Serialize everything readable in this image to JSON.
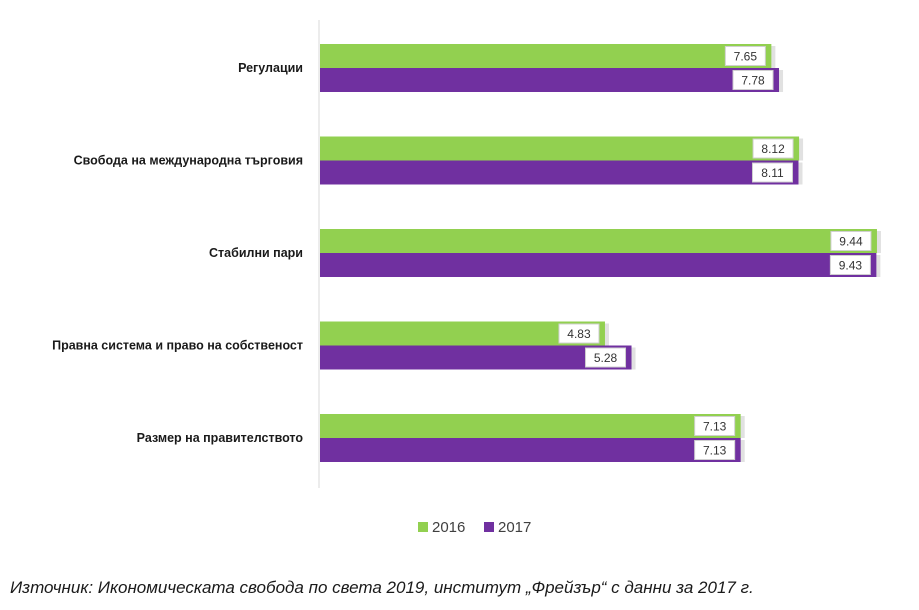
{
  "chart_data": {
    "type": "bar",
    "orientation": "horizontal",
    "categories": [
      "Регулации",
      "Свобода на международна търговия",
      "Стабилни пари",
      "Правна система и право на собственост",
      "Размер на правителството"
    ],
    "series": [
      {
        "name": "2016",
        "color": "#92d050",
        "values": [
          7.65,
          8.12,
          9.44,
          4.83,
          7.13
        ]
      },
      {
        "name": "2017",
        "color": "#7030a0",
        "values": [
          7.78,
          8.11,
          9.43,
          5.28,
          7.13
        ]
      }
    ],
    "xlim": [
      0,
      10
    ],
    "grid": false,
    "legend": "bottom",
    "data_labels": true
  },
  "caption": "Източник: Икономическата свобода по света 2019, институт „Фрейзър“ с данни за 2017 г."
}
